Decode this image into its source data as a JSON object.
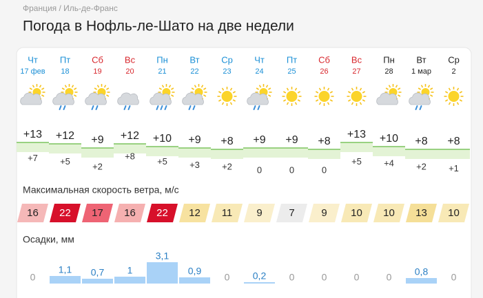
{
  "breadcrumb": "Франция / Иль-де-Франс",
  "title": "Погода в Нофль-ле-Шато на две недели",
  "days": [
    {
      "weekday": "Чт",
      "date": "17 фев",
      "color": "#1a8fd6"
    },
    {
      "weekday": "Пт",
      "date": "18",
      "color": "#1a8fd6"
    },
    {
      "weekday": "Сб",
      "date": "19",
      "color": "#d8262c"
    },
    {
      "weekday": "Вс",
      "date": "20",
      "color": "#d8262c"
    },
    {
      "weekday": "Пн",
      "date": "21",
      "color": "#1a8fd6"
    },
    {
      "weekday": "Вт",
      "date": "22",
      "color": "#1a8fd6"
    },
    {
      "weekday": "Ср",
      "date": "23",
      "color": "#1a8fd6"
    },
    {
      "weekday": "Чт",
      "date": "24",
      "color": "#1a8fd6"
    },
    {
      "weekday": "Пт",
      "date": "25",
      "color": "#1a8fd6"
    },
    {
      "weekday": "Сб",
      "date": "26",
      "color": "#d8262c"
    },
    {
      "weekday": "Вс",
      "date": "27",
      "color": "#d8262c"
    },
    {
      "weekday": "Пн",
      "date": "28",
      "color": "#222222"
    },
    {
      "weekday": "Вт",
      "date": "1 мар",
      "color": "#222222"
    },
    {
      "weekday": "Ср",
      "date": "2",
      "color": "#222222"
    }
  ],
  "temperature": {
    "max": [
      13,
      12,
      9,
      12,
      10,
      9,
      8,
      9,
      9,
      8,
      13,
      10,
      8,
      8
    ],
    "max_labels": [
      "+13",
      "+12",
      "+9",
      "+12",
      "+10",
      "+9",
      "+8",
      "+9",
      "+9",
      "+8",
      "+13",
      "+10",
      "+8",
      "+8"
    ],
    "min": [
      7,
      5,
      2,
      8,
      5,
      3,
      2,
      0,
      0,
      0,
      5,
      4,
      2,
      1
    ],
    "min_labels": [
      "+7",
      "+5",
      "+2",
      "+8",
      "+5",
      "+3",
      "+2",
      "0",
      "0",
      "0",
      "+5",
      "+4",
      "+2",
      "+1"
    ]
  },
  "wind": {
    "label": "Максимальная скорость ветра, м/с",
    "values": [
      16,
      22,
      17,
      16,
      22,
      12,
      11,
      9,
      7,
      9,
      10,
      10,
      13,
      10
    ],
    "colors": [
      "#f5b8b8",
      "#d7102a",
      "#ee6474",
      "#f5b0b0",
      "#d7102a",
      "#f7e2a0",
      "#f8e9b6",
      "#faefcc",
      "#ececec",
      "#faefcc",
      "#f8e9b6",
      "#f8e9b6",
      "#f5df98",
      "#f8e9b6"
    ]
  },
  "precipitation": {
    "label": "Осадки, мм",
    "values": [
      0,
      1.1,
      0.7,
      1,
      3.1,
      0.9,
      0,
      0.2,
      0,
      0,
      0,
      0,
      0.8,
      0
    ],
    "value_labels": [
      "0",
      "1,1",
      "0,7",
      "1",
      "3,1",
      "0,9",
      "0",
      "0,2",
      "0",
      "0",
      "0",
      "0",
      "0,8",
      "0"
    ]
  }
}
